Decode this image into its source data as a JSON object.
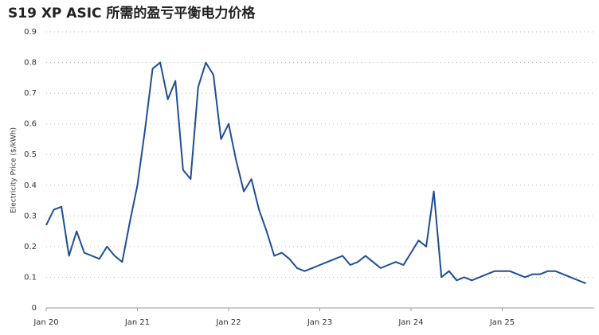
{
  "chart_data": {
    "type": "line",
    "title": "S19 XP ASIC 所需的盈亏平衡电力价格",
    "y_label": "Electricity Price ($/kWh)",
    "x": [
      "2020-01",
      "2020-02",
      "2020-03",
      "2020-04",
      "2020-05",
      "2020-06",
      "2020-07",
      "2020-08",
      "2020-09",
      "2020-10",
      "2020-11",
      "2020-12",
      "2021-01",
      "2021-02",
      "2021-03",
      "2021-04",
      "2021-05",
      "2021-06",
      "2021-07",
      "2021-08",
      "2021-09",
      "2021-10",
      "2021-11",
      "2021-12",
      "2022-01",
      "2022-02",
      "2022-03",
      "2022-04",
      "2022-05",
      "2022-06",
      "2022-07",
      "2022-08",
      "2022-09",
      "2022-10",
      "2022-11",
      "2022-12",
      "2023-01",
      "2023-02",
      "2023-03",
      "2023-04",
      "2023-05",
      "2023-06",
      "2023-07",
      "2023-08",
      "2023-09",
      "2023-10",
      "2023-11",
      "2023-12",
      "2024-01",
      "2024-02",
      "2024-03",
      "2024-04",
      "2024-05",
      "2024-06",
      "2024-07",
      "2024-08",
      "2024-09",
      "2024-10",
      "2024-11",
      "2024-12",
      "2025-01",
      "2025-02",
      "2025-03",
      "2025-04",
      "2025-05",
      "2025-06",
      "2025-07",
      "2025-08",
      "2025-09",
      "2025-10",
      "2025-11",
      "2025-12"
    ],
    "series": [
      {
        "name": "Electricity Price ($/kWh)",
        "color": "#1f4e96",
        "values": [
          0.27,
          0.32,
          0.33,
          0.17,
          0.25,
          0.18,
          0.17,
          0.16,
          0.2,
          0.17,
          0.15,
          0.28,
          0.4,
          0.58,
          0.78,
          0.8,
          0.68,
          0.74,
          0.45,
          0.42,
          0.72,
          0.8,
          0.76,
          0.55,
          0.6,
          0.48,
          0.38,
          0.42,
          0.32,
          0.25,
          0.17,
          0.18,
          0.16,
          0.13,
          0.12,
          0.13,
          0.14,
          0.15,
          0.16,
          0.17,
          0.14,
          0.15,
          0.17,
          0.15,
          0.13,
          0.14,
          0.15,
          0.14,
          0.18,
          0.22,
          0.2,
          0.38,
          0.1,
          0.12,
          0.09,
          0.1,
          0.09,
          0.1,
          0.11,
          0.12,
          0.12,
          0.12,
          0.11,
          0.1,
          0.11,
          0.11,
          0.12,
          0.12,
          0.11,
          0.1,
          0.09,
          0.08
        ]
      }
    ],
    "ylim": [
      0,
      0.9
    ],
    "yticks": [
      0,
      0.1,
      0.2,
      0.3,
      0.4,
      0.5,
      0.6,
      0.7,
      0.8,
      0.9
    ],
    "xticks": [
      {
        "value": "2020-01",
        "label": "Jan 20"
      },
      {
        "value": "2021-01",
        "label": "Jan 21"
      },
      {
        "value": "2022-01",
        "label": "Jan 22"
      },
      {
        "value": "2023-01",
        "label": "Jan 23"
      },
      {
        "value": "2024-01",
        "label": "Jan 24"
      },
      {
        "value": "2025-01",
        "label": "Jan 25"
      }
    ],
    "grid": true
  }
}
